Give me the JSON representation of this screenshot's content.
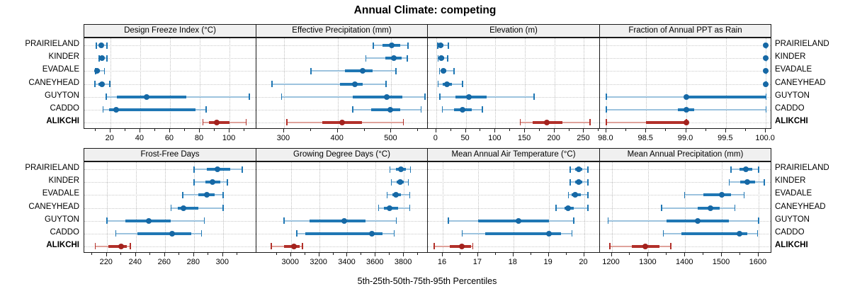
{
  "title": "Annual Climate: competing",
  "footer": "5th-25th-50th-75th-95th Percentiles",
  "sites": [
    "PRAIRIELAND",
    "KINDER",
    "EVADALE",
    "CANEYHEAD",
    "GUYTON",
    "CADDO",
    "ALIKCHI"
  ],
  "highlight_site": "ALIKCHI",
  "colors": {
    "blue": {
      "tail": "#9dc3de",
      "main": "#1f77b4",
      "dot": "#1668a5"
    },
    "red": {
      "tail": "#dfa39c",
      "main": "#b2302a",
      "dot": "#a3221e"
    },
    "grid": "#c9c9c9",
    "border": "#1a1a1a",
    "header_bg": "#f0f0f0"
  },
  "chart_data": {
    "type": "dotplot-range",
    "note": "Each row shows 5th-25th-50th-75th-95th percentiles per site; ALIKCHI highlighted red",
    "panels": [
      {
        "title": "Design Freeze Index (°C)",
        "xlim": [
          3,
          118
        ],
        "ticks": [
          20,
          40,
          60,
          80,
          100
        ],
        "tick_labels": [
          "20",
          "40",
          "60",
          "80",
          "100"
        ],
        "series": {
          "PRAIRIELAND": [
            10.5,
            12.5,
            14,
            15.5,
            17.5
          ],
          "KINDER": [
            12.5,
            13.5,
            14.5,
            15.5,
            17.5
          ],
          "EVADALE": [
            10,
            10.5,
            11,
            13,
            16
          ],
          "CANEYHEAD": [
            9.5,
            12,
            14.5,
            16,
            19.5
          ],
          "GUYTON": [
            17,
            24.5,
            44.5,
            71,
            113
          ],
          "CADDO": [
            15,
            19,
            24,
            77,
            84
          ],
          "ALIKCHI": [
            82,
            86,
            91.5,
            100,
            111
          ]
        }
      },
      {
        "title": "Effective Precipitation (mm)",
        "xlim": [
          250,
          568
        ],
        "ticks": [
          300,
          400,
          500
        ],
        "tick_labels": [
          "300",
          "400",
          "500"
        ],
        "series": {
          "PRAIRIELAND": [
            466,
            483,
            501,
            517,
            531
          ],
          "KINDER": [
            452,
            489,
            505,
            519,
            529
          ],
          "EVADALE": [
            350,
            413,
            446,
            465,
            508
          ],
          "CANEYHEAD": [
            277,
            404,
            432,
            447,
            490
          ],
          "GUYTON": [
            295,
            428,
            492,
            521,
            562
          ],
          "CADDO": [
            428,
            462,
            498,
            516,
            555
          ],
          "ALIKCHI": [
            305,
            372,
            408,
            445,
            522
          ]
        }
      },
      {
        "title": "Elevation (m)",
        "xlim": [
          -13,
          277
        ],
        "ticks": [
          0,
          50,
          100,
          150,
          200,
          250
        ],
        "tick_labels": [
          "0",
          "50",
          "100",
          "150",
          "200",
          "250"
        ],
        "series": {
          "PRAIRIELAND": [
            2,
            4,
            7,
            12,
            20
          ],
          "KINDER": [
            3,
            6,
            9,
            13,
            19
          ],
          "EVADALE": [
            5,
            9,
            12,
            17,
            30
          ],
          "CANEYHEAD": [
            3,
            11,
            18,
            26,
            44
          ],
          "GUYTON": [
            6,
            32,
            55,
            85,
            165
          ],
          "CADDO": [
            10,
            30,
            44,
            60,
            78
          ],
          "ALIKCHI": [
            142,
            163,
            187,
            213,
            260
          ]
        }
      },
      {
        "title": "Fraction of Annual PPT as Rain",
        "xlim": [
          97.93,
          100.07
        ],
        "ticks": [
          98.0,
          98.5,
          99.0,
          99.5,
          100.0
        ],
        "tick_labels": [
          "98.0",
          "98.5",
          "99.0",
          "99.5",
          "100.0"
        ],
        "series": {
          "PRAIRIELAND": [
            100,
            100,
            100,
            100,
            100
          ],
          "KINDER": [
            100,
            100,
            100,
            100,
            100
          ],
          "EVADALE": [
            100,
            100,
            100,
            100,
            100
          ],
          "CANEYHEAD": [
            100,
            100,
            100,
            100,
            100
          ],
          "GUYTON": [
            98,
            99,
            99,
            100,
            100
          ],
          "CADDO": [
            98,
            98.9,
            99,
            99.1,
            100
          ],
          "ALIKCHI": [
            98,
            98.5,
            99,
            99,
            99
          ]
        }
      },
      {
        "title": "Frost-Free Days",
        "xlim": [
          205,
          323
        ],
        "ticks": [
          220,
          240,
          260,
          280,
          300
        ],
        "tick_labels": [
          "220",
          "240",
          "260",
          "280",
          "300"
        ],
        "series": {
          "PRAIRIELAND": [
            280,
            289,
            296,
            305,
            313
          ],
          "KINDER": [
            280,
            288,
            293,
            298,
            303
          ],
          "EVADALE": [
            272,
            283,
            289,
            294,
            300
          ],
          "CANEYHEAD": [
            264,
            269,
            273,
            283,
            300
          ],
          "GUYTON": [
            220,
            233,
            249,
            264,
            287
          ],
          "CADDO": [
            226,
            241,
            265,
            278,
            285
          ],
          "ALIKCHI": [
            212,
            221,
            230,
            234,
            236
          ]
        }
      },
      {
        "title": "Growing Degree Days (°C)",
        "xlim": [
          2760,
          3970
        ],
        "ticks": [
          3000,
          3200,
          3400,
          3600,
          3800
        ],
        "tick_labels": [
          "3000",
          "3200",
          "3400",
          "3600",
          "3800"
        ],
        "series": {
          "PRAIRIELAND": [
            3700,
            3745,
            3780,
            3815,
            3845
          ],
          "KINDER": [
            3710,
            3750,
            3772,
            3800,
            3830
          ],
          "EVADALE": [
            3680,
            3720,
            3745,
            3780,
            3840
          ],
          "CANEYHEAD": [
            3620,
            3660,
            3700,
            3760,
            3840
          ],
          "GUYTON": [
            2950,
            3130,
            3380,
            3530,
            3745
          ],
          "CADDO": [
            3040,
            3100,
            3575,
            3650,
            3730
          ],
          "ALIKCHI": [
            2860,
            2950,
            3020,
            3060,
            3080
          ]
        }
      },
      {
        "title": "Mean Annual Air Temperature (°C)",
        "xlim": [
          15.6,
          20.45
        ],
        "ticks": [
          16,
          17,
          18,
          19,
          20
        ],
        "tick_labels": [
          "16",
          "17",
          "18",
          "19",
          "20"
        ],
        "series": {
          "PRAIRIELAND": [
            19.6,
            19.75,
            19.85,
            19.95,
            20.1
          ],
          "KINDER": [
            19.6,
            19.75,
            19.85,
            19.95,
            20.1
          ],
          "EVADALE": [
            19.55,
            19.65,
            19.75,
            19.9,
            20.1
          ],
          "CANEYHEAD": [
            19.2,
            19.45,
            19.55,
            19.7,
            20.1
          ],
          "GUYTON": [
            16.15,
            17.0,
            18.15,
            19.0,
            19.7
          ],
          "CADDO": [
            16.55,
            17.2,
            19.0,
            19.35,
            19.65
          ],
          "ALIKCHI": [
            15.75,
            16.2,
            16.55,
            16.8,
            16.85
          ]
        }
      },
      {
        "title": "Mean Annual Precipitation (mm)",
        "xlim": [
          1170,
          1635
        ],
        "ticks": [
          1200,
          1300,
          1400,
          1500,
          1600
        ],
        "tick_labels": [
          "1200",
          "1300",
          "1400",
          "1500",
          "1600"
        ],
        "series": {
          "PRAIRIELAND": [
            1525,
            1548,
            1565,
            1582,
            1600
          ],
          "KINDER": [
            1520,
            1550,
            1570,
            1590,
            1615
          ],
          "EVADALE": [
            1398,
            1450,
            1500,
            1525,
            1560
          ],
          "CANEYHEAD": [
            1335,
            1435,
            1470,
            1495,
            1535
          ],
          "GUYTON": [
            1190,
            1350,
            1435,
            1520,
            1600
          ],
          "CADDO": [
            1340,
            1390,
            1548,
            1570,
            1597
          ],
          "ALIKCHI": [
            1195,
            1255,
            1292,
            1330,
            1360
          ]
        }
      }
    ]
  }
}
